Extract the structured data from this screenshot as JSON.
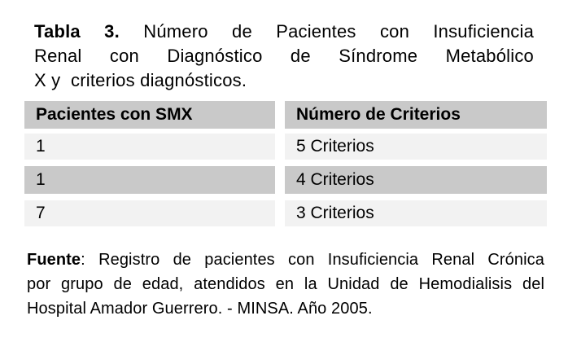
{
  "title": {
    "prefix": "Tabla 3.",
    "line1_rest": "Número de Pacientes con Insuficiencia",
    "line2": "Renal con Diagnóstico de Síndrome Metabólico",
    "line3": "X y  criterios diagnósticos."
  },
  "table": {
    "headers": [
      "Pacientes con SMX",
      "Número de Criterios"
    ],
    "rows": [
      {
        "patients": "1",
        "criteria": "5 Criterios",
        "shade": "light"
      },
      {
        "patients": "1",
        "criteria": "4 Criterios",
        "shade": "dark"
      },
      {
        "patients": "7",
        "criteria": "3 Criterios",
        "shade": "light"
      }
    ],
    "colors": {
      "header_bg": "#c9c9c9",
      "row_dark_bg": "#c9c9c9",
      "row_light_bg": "#f2f2f2",
      "text": "#000000"
    }
  },
  "source": {
    "prefix": "Fuente",
    "line1_rest": ": Registro de pacientes con Insuficiencia Renal Crónica",
    "line2": "por grupo de edad, atendidos en la Unidad de Hemodialisis del",
    "line3": "Hospital Amador Guerrero. - MINSA. Año 2005."
  },
  "chart_data": {
    "type": "table",
    "title": "Tabla 3. Número de Pacientes con Insuficiencia Renal con Diagnóstico de Síndrome Metabólico X y criterios diagnósticos.",
    "columns": [
      "Pacientes con SMX",
      "Número de Criterios"
    ],
    "rows": [
      [
        "1",
        "5 Criterios"
      ],
      [
        "1",
        "4 Criterios"
      ],
      [
        "7",
        "3 Criterios"
      ]
    ],
    "source_note": "Fuente: Registro de pacientes con Insuficiencia Renal Crónica por grupo de edad, atendidos en la Unidad de Hemodialisis del Hospital Amador Guerrero. - MINSA. Año 2005."
  }
}
